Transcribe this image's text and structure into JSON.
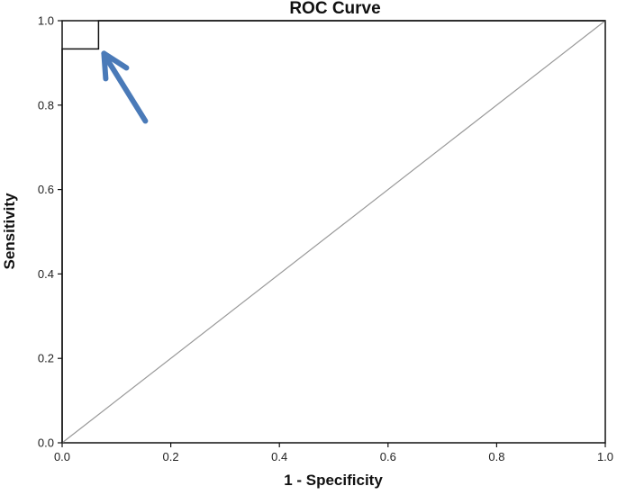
{
  "chart_data": {
    "type": "line",
    "title": "ROC Curve",
    "xlabel": "1 - Specificity",
    "ylabel": "Sensitivity",
    "xlim": [
      0.0,
      1.0
    ],
    "ylim": [
      0.0,
      1.0
    ],
    "x_ticks": [
      "0.0",
      "0.2",
      "0.4",
      "0.6",
      "0.8",
      "1.0"
    ],
    "y_ticks": [
      "0.0",
      "0.2",
      "0.4",
      "0.6",
      "0.8",
      "1.0"
    ],
    "grid": false,
    "legend": "none",
    "series": [
      {
        "x": [
          0.0,
          0.0,
          0.067,
          0.067,
          1.0
        ],
        "y": [
          0.0,
          0.933,
          0.933,
          1.0,
          1.0
        ]
      }
    ],
    "reference_line": {
      "x": [
        0.0,
        1.0
      ],
      "y": [
        0.0,
        1.0
      ]
    },
    "annotations": [
      {
        "type": "arrow",
        "points_to": {
          "x": 0.067,
          "y": 0.933
        },
        "color": "#4a7ab8"
      }
    ],
    "colors": {
      "curve": "#111111",
      "reference": "#999999",
      "frame": "#111111",
      "arrow": "#4a7ab8"
    }
  }
}
